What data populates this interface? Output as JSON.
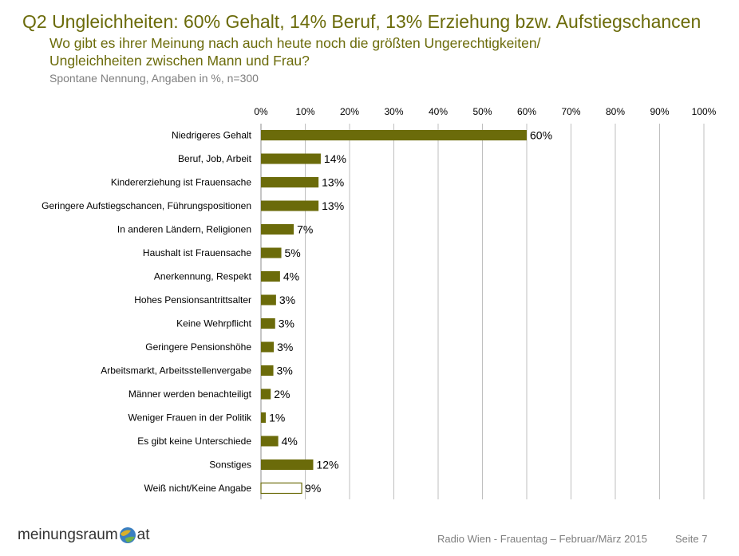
{
  "header": {
    "title": "Q2 Ungleichheiten: 60% Gehalt, 14% Beruf, 13% Erziehung bzw. Aufstiegschancen",
    "question": "Wo gibt es ihrer Meinung nach auch heute noch die größten Ungerechtigkeiten/\nUngleichheiten zwischen Mann und Frau?",
    "subtitle": "Spontane Nennung, Angaben in %, n=300"
  },
  "colors": {
    "bar": "#6b6b0a",
    "bar_outline_only": "#ffffff",
    "gridline": "#bfbfbf",
    "title": "#6b6b0a"
  },
  "chart_data": {
    "type": "bar",
    "orientation": "horizontal",
    "categories": [
      "Niedrigeres Gehalt",
      "Beruf, Job, Arbeit",
      "Kindererziehung ist Frauensache",
      "Geringere Aufstiegschancen, Führungspositionen",
      "In anderen Ländern, Religionen",
      "Haushalt ist Frauensache",
      "Anerkennung, Respekt",
      "Hohes Pensionsantrittsalter",
      "Keine Wehrpflicht",
      "Geringere Pensionshöhe",
      "Arbeitsmarkt, Arbeitsstellenvergabe",
      "Männer werden benachteiligt",
      "Weniger Frauen in der Politik",
      "Es gibt keine Unterschiede",
      "Sonstiges",
      "Weiß nicht/Keine Angabe"
    ],
    "values": [
      60,
      13.5,
      13,
      13,
      7.4,
      4.6,
      4.3,
      3.4,
      3.2,
      2.9,
      2.8,
      2.2,
      1.1,
      3.9,
      11.8,
      9.2
    ],
    "value_labels": [
      "60%",
      "14%",
      "13%",
      "13%",
      "7%",
      "5%",
      "4%",
      "3%",
      "3%",
      "3%",
      "3%",
      "2%",
      "1%",
      "4%",
      "12%",
      "9%"
    ],
    "hollow_bars": [
      15
    ],
    "xlim": [
      0,
      100
    ],
    "x_ticks": [
      0,
      10,
      20,
      30,
      40,
      50,
      60,
      70,
      80,
      90,
      100
    ],
    "x_tick_labels": [
      "0%",
      "10%",
      "20%",
      "30%",
      "40%",
      "50%",
      "60%",
      "70%",
      "80%",
      "90%",
      "100%"
    ],
    "axis_position": "top",
    "grid": true,
    "legend": "none"
  },
  "footer": {
    "logo_left": "meinungsraum",
    "logo_right": "at",
    "source": "Radio Wien -  Frauentag – Februar/März 2015",
    "page": "Seite 7"
  }
}
